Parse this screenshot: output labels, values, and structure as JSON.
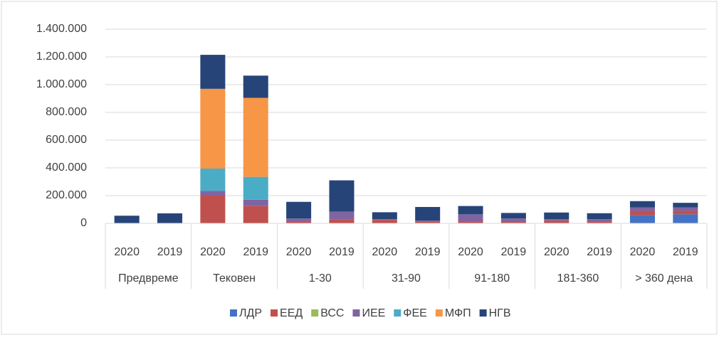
{
  "chart_data": {
    "type": "stacked_bar",
    "categories": [
      "2020",
      "2019",
      "2020",
      "2019",
      "2020",
      "2019",
      "2020",
      "2019",
      "2020",
      "2019",
      "2020",
      "2019",
      "2020",
      "2019"
    ],
    "groups": [
      "Предвреме",
      "Тековен",
      "1-30",
      "31-90",
      "91-180",
      "181-360",
      "> 360 дена"
    ],
    "series": [
      {
        "name": "ЛДР",
        "color": "#4472c4",
        "values": [
          0,
          0,
          0,
          0,
          0,
          0,
          0,
          0,
          0,
          0,
          0,
          0,
          60000,
          65000
        ]
      },
      {
        "name": "ЕЕД",
        "color": "#c0504d",
        "values": [
          0,
          0,
          200000,
          125000,
          15000,
          30000,
          25000,
          15000,
          15000,
          10000,
          20000,
          15000,
          30000,
          25000
        ]
      },
      {
        "name": "ВСС",
        "color": "#9bbb59",
        "values": [
          0,
          0,
          0,
          0,
          0,
          0,
          0,
          0,
          0,
          0,
          0,
          0,
          0,
          0
        ]
      },
      {
        "name": "ИЕЕ",
        "color": "#8064a2",
        "values": [
          0,
          0,
          35000,
          45000,
          20000,
          55000,
          5000,
          5000,
          50000,
          25000,
          10000,
          15000,
          25000,
          25000
        ]
      },
      {
        "name": "ФЕЕ",
        "color": "#4bacc6",
        "values": [
          0,
          0,
          160000,
          165000,
          0,
          0,
          0,
          0,
          0,
          0,
          0,
          0,
          0,
          0
        ]
      },
      {
        "name": "МФП",
        "color": "#f79646",
        "values": [
          0,
          0,
          575000,
          570000,
          0,
          0,
          0,
          0,
          0,
          0,
          0,
          0,
          0,
          0
        ]
      },
      {
        "name": "НГВ",
        "color": "#264478",
        "values": [
          55000,
          72000,
          245000,
          160000,
          120000,
          225000,
          50000,
          98000,
          60000,
          40000,
          48000,
          43000,
          45000,
          33000
        ]
      }
    ],
    "ylim": [
      0,
      1400000
    ],
    "yticks": [
      0,
      {
        "value": 200000,
        "label": "200.000"
      },
      {
        "value": 400000,
        "label": "400.000"
      },
      {
        "value": 600000,
        "label": "600.000"
      },
      {
        "value": 800000,
        "label": "800.000"
      },
      {
        "value": 1000000,
        "label": "1.000.000"
      },
      {
        "value": 1200000,
        "label": "1.200.000"
      },
      {
        "value": 1400000,
        "label": "1.400.000"
      }
    ],
    "grid": true,
    "legend": "bottom"
  }
}
